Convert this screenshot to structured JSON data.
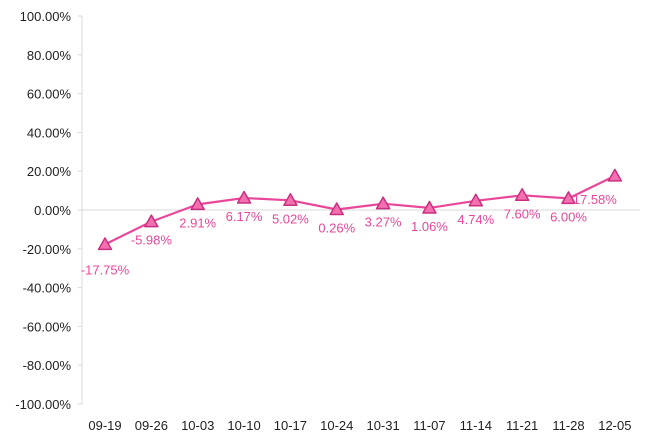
{
  "chart_data": {
    "type": "line",
    "categories": [
      "09-19",
      "09-26",
      "10-03",
      "10-10",
      "10-17",
      "10-24",
      "10-31",
      "11-07",
      "11-14",
      "11-21",
      "11-28",
      "12-05"
    ],
    "series": [
      {
        "values": [
          -17.75,
          -5.98,
          2.91,
          6.17,
          5.02,
          0.26,
          3.27,
          1.06,
          4.74,
          7.6,
          6.0,
          17.58
        ],
        "labels": [
          "-17.75%",
          "-5.98%",
          "2.91%",
          "6.17%",
          "5.02%",
          "0.26%",
          "3.27%",
          "1.06%",
          "4.74%",
          "7.60%",
          "6.00%",
          "17.58%"
        ]
      }
    ],
    "ylim": [
      -100,
      100
    ],
    "yticks": [
      100,
      80,
      60,
      40,
      20,
      0,
      -20,
      -40,
      -60,
      -80,
      -100
    ],
    "ytick_labels": [
      "100.00%",
      "80.00%",
      "60.00%",
      "40.00%",
      "20.00%",
      "0.00%",
      "-20.00%",
      "-40.00%",
      "-60.00%",
      "-80.00%",
      "-100.00%"
    ],
    "marker": "triangle",
    "grid": false,
    "legend": "none",
    "colors": {
      "line": "#e8479a",
      "marker_fill": "#f46fb0",
      "marker_stroke": "#c8307f",
      "label": "#e8479a",
      "axis": "#d9d9d9"
    }
  }
}
